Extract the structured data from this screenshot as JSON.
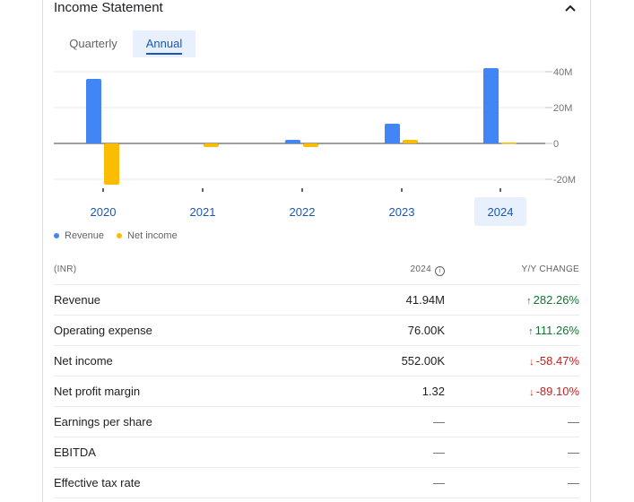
{
  "section": {
    "title": "Income Statement",
    "collapse_icon": "chevron-up-icon"
  },
  "tabs": [
    {
      "label": "Quarterly"
    },
    {
      "label": "Annual"
    }
  ],
  "colors": {
    "revenue": "#4285f4",
    "net_income": "#fbbc04",
    "highlight": "#e8f0fe",
    "accent": "#1a56b8"
  },
  "chart_data": {
    "type": "bar",
    "categories": [
      "2020",
      "2021",
      "2022",
      "2023",
      "2024"
    ],
    "selected_category": "2024",
    "series": [
      {
        "name": "Revenue",
        "values": [
          36,
          0,
          2,
          11,
          42
        ]
      },
      {
        "name": "Net income",
        "values": [
          -23,
          -2,
          -2,
          2,
          0.552
        ]
      }
    ],
    "ticks": [
      {
        "value": 40,
        "label": "40M"
      },
      {
        "value": 20,
        "label": "20M"
      },
      {
        "value": 0,
        "label": "0"
      },
      {
        "value": -20,
        "label": "-20M"
      }
    ],
    "ylim": [
      -25,
      43
    ],
    "legend_position": "bottom-left"
  },
  "legend": [
    {
      "label": "Revenue"
    },
    {
      "label": "Net income"
    }
  ],
  "table": {
    "header": {
      "label": "(INR)",
      "year": "2024",
      "change": "Y/Y CHANGE"
    },
    "rows": [
      {
        "label": "Revenue",
        "value": "41.94M",
        "change": "282.26%",
        "direction": "up"
      },
      {
        "label": "Operating expense",
        "value": "76.00K",
        "change": "111.26%",
        "direction": "up"
      },
      {
        "label": "Net income",
        "value": "552.00K",
        "change": "-58.47%",
        "direction": "down"
      },
      {
        "label": "Net profit margin",
        "value": "1.32",
        "change": "-89.10%",
        "direction": "down"
      },
      {
        "label": "Earnings per share",
        "value": "—",
        "change": "—",
        "direction": "none"
      },
      {
        "label": "EBITDA",
        "value": "—",
        "change": "—",
        "direction": "none"
      },
      {
        "label": "Effective tax rate",
        "value": "—",
        "change": "—",
        "direction": "none"
      }
    ]
  }
}
